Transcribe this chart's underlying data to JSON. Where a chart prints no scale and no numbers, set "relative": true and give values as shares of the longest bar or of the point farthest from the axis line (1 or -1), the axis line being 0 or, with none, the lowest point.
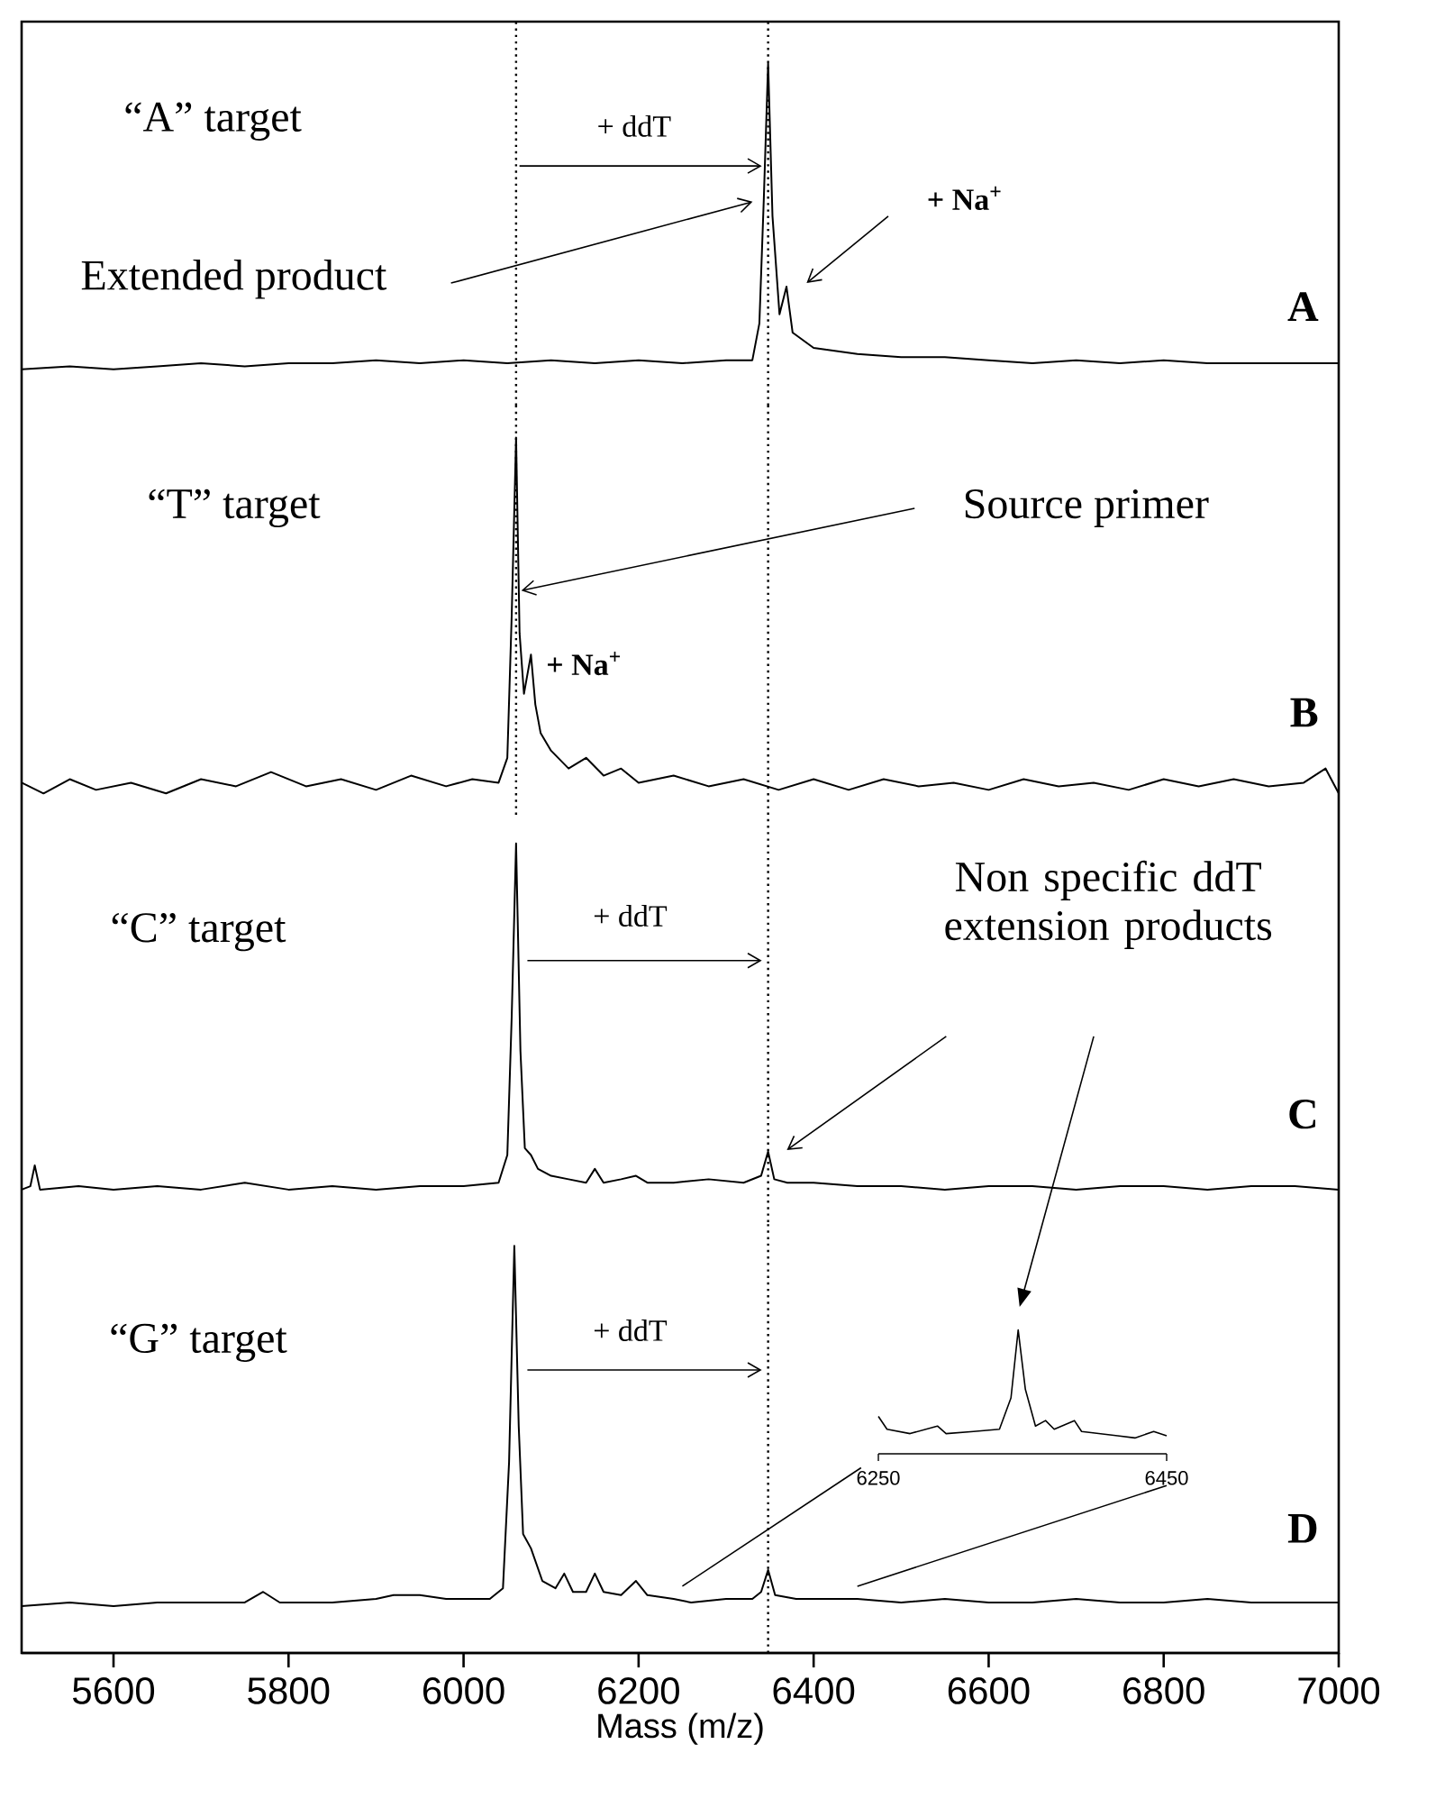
{
  "chart_data": [
    {
      "type": "line",
      "relative": true,
      "color": "#000000",
      "xlim": [
        5495,
        7000
      ],
      "tick_labels": false,
      "x": [
        5495,
        5550,
        5600,
        5650,
        5700,
        5750,
        5800,
        5850,
        5900,
        5950,
        6000,
        6050,
        6100,
        6150,
        6200,
        6250,
        6300,
        6330,
        6338,
        6343,
        6348,
        6353,
        6361,
        6369,
        6376,
        6400,
        6450,
        6500,
        6550,
        6600,
        6650,
        6700,
        6750,
        6800,
        6850,
        6900,
        6950,
        7000
      ],
      "values": [
        0.0,
        0.01,
        0.0,
        0.01,
        0.02,
        0.01,
        0.02,
        0.02,
        0.03,
        0.02,
        0.03,
        0.02,
        0.03,
        0.02,
        0.03,
        0.02,
        0.03,
        0.03,
        0.15,
        0.55,
        1.0,
        0.5,
        0.18,
        0.27,
        0.12,
        0.07,
        0.05,
        0.04,
        0.04,
        0.03,
        0.02,
        0.03,
        0.02,
        0.03,
        0.02,
        0.02,
        0.02,
        0.02
      ],
      "ref_lines": [
        {
          "axis": "x",
          "value": 6060,
          "line_style": "dotted",
          "color": "#000000"
        },
        {
          "axis": "x",
          "value": 6348,
          "line_style": "dotted",
          "color": "#000000"
        }
      ],
      "annotations": [
        "“A” target",
        "+ ddT",
        "Extended product",
        "+ Na$^{+}$",
        "A"
      ]
    },
    {
      "type": "line",
      "relative": true,
      "color": "#000000",
      "xlim": [
        5495,
        7000
      ],
      "tick_labels": false,
      "x": [
        5495,
        5520,
        5550,
        5580,
        5620,
        5660,
        5700,
        5740,
        5780,
        5820,
        5860,
        5900,
        5940,
        5980,
        6010,
        6040,
        6050,
        6055,
        6060,
        6064,
        6069,
        6077,
        6082,
        6088,
        6100,
        6120,
        6140,
        6160,
        6180,
        6200,
        6240,
        6280,
        6320,
        6360,
        6400,
        6440,
        6480,
        6520,
        6560,
        6600,
        6640,
        6680,
        6720,
        6760,
        6800,
        6840,
        6880,
        6920,
        6960,
        6985,
        7000
      ],
      "values": [
        0.03,
        0.0,
        0.04,
        0.01,
        0.03,
        0.0,
        0.04,
        0.02,
        0.06,
        0.02,
        0.04,
        0.01,
        0.05,
        0.02,
        0.04,
        0.03,
        0.1,
        0.5,
        1.0,
        0.45,
        0.28,
        0.39,
        0.25,
        0.17,
        0.12,
        0.07,
        0.1,
        0.05,
        0.07,
        0.03,
        0.05,
        0.02,
        0.04,
        0.01,
        0.04,
        0.01,
        0.04,
        0.02,
        0.03,
        0.01,
        0.04,
        0.02,
        0.03,
        0.01,
        0.04,
        0.02,
        0.04,
        0.02,
        0.03,
        0.07,
        0.0
      ],
      "ref_lines": [
        {
          "axis": "x",
          "value": 6060,
          "line_style": "dotted",
          "color": "#000000"
        },
        {
          "axis": "x",
          "value": 6348,
          "line_style": "dotted",
          "color": "#000000"
        }
      ],
      "annotations": [
        "“T” target",
        {
          "text": "Source primer",
          "x": 6066,
          "y": 0.57
        },
        "+ Na$^{+}$",
        "B"
      ]
    },
    {
      "type": "line",
      "relative": true,
      "color": "#000000",
      "xlim": [
        5495,
        7000
      ],
      "tick_labels": false,
      "x": [
        5495,
        5505,
        5510,
        5516,
        5560,
        5600,
        5650,
        5700,
        5750,
        5800,
        5850,
        5900,
        5950,
        6000,
        6040,
        6050,
        6055,
        6060,
        6065,
        6070,
        6077,
        6085,
        6100,
        6120,
        6140,
        6150,
        6160,
        6180,
        6197,
        6210,
        6240,
        6280,
        6320,
        6340,
        6348,
        6355,
        6370,
        6400,
        6450,
        6500,
        6550,
        6600,
        6650,
        6700,
        6750,
        6800,
        6850,
        6900,
        6950,
        7000
      ],
      "values": [
        0.0,
        0.01,
        0.07,
        0.0,
        0.01,
        0.0,
        0.01,
        0.0,
        0.02,
        0.0,
        0.01,
        0.0,
        0.01,
        0.01,
        0.02,
        0.1,
        0.5,
        1.0,
        0.4,
        0.12,
        0.1,
        0.06,
        0.04,
        0.03,
        0.02,
        0.06,
        0.02,
        0.03,
        0.04,
        0.02,
        0.02,
        0.03,
        0.02,
        0.04,
        0.11,
        0.03,
        0.02,
        0.02,
        0.01,
        0.01,
        0.0,
        0.01,
        0.01,
        0.0,
        0.01,
        0.01,
        0.0,
        0.01,
        0.01,
        0.0
      ],
      "ref_lines": [
        {
          "axis": "x",
          "value": 6348,
          "line_style": "dotted",
          "color": "#000000"
        }
      ],
      "annotations": [
        "“C” target",
        "+ ddT",
        "Non specific ddT extension products",
        "C"
      ]
    },
    {
      "type": "line",
      "relative": true,
      "color": "#000000",
      "xlim": [
        5495,
        7000
      ],
      "tick_labels": "x",
      "xlabel": "Mass (m/z)",
      "xticks": [
        5600,
        5800,
        6000,
        6200,
        6400,
        6600,
        6800,
        7000
      ],
      "x": [
        5495,
        5550,
        5600,
        5650,
        5700,
        5750,
        5771,
        5790,
        5850,
        5900,
        5920,
        5950,
        5980,
        6030,
        6045,
        6052,
        6058,
        6063,
        6068,
        6077,
        6090,
        6105,
        6115,
        6125,
        6140,
        6150,
        6160,
        6180,
        6197,
        6210,
        6240,
        6260,
        6300,
        6330,
        6340,
        6348,
        6356,
        6380,
        6450,
        6500,
        6550,
        6600,
        6650,
        6700,
        6750,
        6800,
        6850,
        6900,
        6950,
        7000
      ],
      "values": [
        0.115,
        0.124,
        0.115,
        0.124,
        0.124,
        0.124,
        0.15,
        0.124,
        0.124,
        0.133,
        0.142,
        0.142,
        0.133,
        0.133,
        0.159,
        0.469,
        1.0,
        0.558,
        0.292,
        0.257,
        0.177,
        0.159,
        0.195,
        0.15,
        0.15,
        0.195,
        0.15,
        0.142,
        0.177,
        0.142,
        0.133,
        0.124,
        0.133,
        0.133,
        0.15,
        0.204,
        0.142,
        0.133,
        0.133,
        0.124,
        0.133,
        0.124,
        0.124,
        0.133,
        0.124,
        0.124,
        0.133,
        0.124,
        0.124,
        0.124
      ],
      "ref_lines": [
        {
          "axis": "x",
          "value": 6348,
          "line_style": "dotted",
          "color": "#000000"
        }
      ],
      "annotations": [
        "“G” target",
        "+ ddT",
        "D"
      ]
    },
    {
      "type": "line",
      "relative": true,
      "color": "#000000",
      "xlim": [
        6250,
        6450
      ],
      "tick_labels": "x",
      "xticks": [
        6250,
        6450
      ],
      "x": [
        6250,
        6256,
        6272,
        6291,
        6297,
        6316,
        6334,
        6342,
        6347,
        6352,
        6359,
        6366,
        6372,
        6386,
        6391,
        6416,
        6428,
        6441,
        6450
      ],
      "values": [
        0.302,
        0.198,
        0.163,
        0.224,
        0.163,
        0.18,
        0.198,
        0.451,
        1.0,
        0.52,
        0.224,
        0.268,
        0.198,
        0.268,
        0.18,
        0.145,
        0.128,
        0.18,
        0.145
      ]
    }
  ]
}
